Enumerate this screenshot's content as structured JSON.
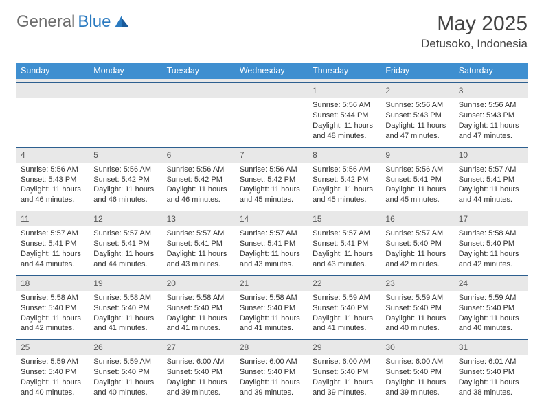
{
  "brand": {
    "part1": "General",
    "part2": "Blue"
  },
  "title": "May 2025",
  "location": "Detusoko, Indonesia",
  "colors": {
    "header_bg": "#3f8fd0",
    "week_border": "#2d5f8f",
    "day_num_bg": "#e8e8e8",
    "brand_gray": "#6c6c6c",
    "brand_blue": "#2a7ac0"
  },
  "weekdays": [
    "Sunday",
    "Monday",
    "Tuesday",
    "Wednesday",
    "Thursday",
    "Friday",
    "Saturday"
  ],
  "weeks": [
    [
      null,
      null,
      null,
      null,
      {
        "n": "1",
        "sunrise": "5:56 AM",
        "sunset": "5:44 PM",
        "daylight": "11 hours and 48 minutes."
      },
      {
        "n": "2",
        "sunrise": "5:56 AM",
        "sunset": "5:43 PM",
        "daylight": "11 hours and 47 minutes."
      },
      {
        "n": "3",
        "sunrise": "5:56 AM",
        "sunset": "5:43 PM",
        "daylight": "11 hours and 47 minutes."
      }
    ],
    [
      {
        "n": "4",
        "sunrise": "5:56 AM",
        "sunset": "5:43 PM",
        "daylight": "11 hours and 46 minutes."
      },
      {
        "n": "5",
        "sunrise": "5:56 AM",
        "sunset": "5:42 PM",
        "daylight": "11 hours and 46 minutes."
      },
      {
        "n": "6",
        "sunrise": "5:56 AM",
        "sunset": "5:42 PM",
        "daylight": "11 hours and 46 minutes."
      },
      {
        "n": "7",
        "sunrise": "5:56 AM",
        "sunset": "5:42 PM",
        "daylight": "11 hours and 45 minutes."
      },
      {
        "n": "8",
        "sunrise": "5:56 AM",
        "sunset": "5:42 PM",
        "daylight": "11 hours and 45 minutes."
      },
      {
        "n": "9",
        "sunrise": "5:56 AM",
        "sunset": "5:41 PM",
        "daylight": "11 hours and 45 minutes."
      },
      {
        "n": "10",
        "sunrise": "5:57 AM",
        "sunset": "5:41 PM",
        "daylight": "11 hours and 44 minutes."
      }
    ],
    [
      {
        "n": "11",
        "sunrise": "5:57 AM",
        "sunset": "5:41 PM",
        "daylight": "11 hours and 44 minutes."
      },
      {
        "n": "12",
        "sunrise": "5:57 AM",
        "sunset": "5:41 PM",
        "daylight": "11 hours and 44 minutes."
      },
      {
        "n": "13",
        "sunrise": "5:57 AM",
        "sunset": "5:41 PM",
        "daylight": "11 hours and 43 minutes."
      },
      {
        "n": "14",
        "sunrise": "5:57 AM",
        "sunset": "5:41 PM",
        "daylight": "11 hours and 43 minutes."
      },
      {
        "n": "15",
        "sunrise": "5:57 AM",
        "sunset": "5:41 PM",
        "daylight": "11 hours and 43 minutes."
      },
      {
        "n": "16",
        "sunrise": "5:57 AM",
        "sunset": "5:40 PM",
        "daylight": "11 hours and 42 minutes."
      },
      {
        "n": "17",
        "sunrise": "5:58 AM",
        "sunset": "5:40 PM",
        "daylight": "11 hours and 42 minutes."
      }
    ],
    [
      {
        "n": "18",
        "sunrise": "5:58 AM",
        "sunset": "5:40 PM",
        "daylight": "11 hours and 42 minutes."
      },
      {
        "n": "19",
        "sunrise": "5:58 AM",
        "sunset": "5:40 PM",
        "daylight": "11 hours and 41 minutes."
      },
      {
        "n": "20",
        "sunrise": "5:58 AM",
        "sunset": "5:40 PM",
        "daylight": "11 hours and 41 minutes."
      },
      {
        "n": "21",
        "sunrise": "5:58 AM",
        "sunset": "5:40 PM",
        "daylight": "11 hours and 41 minutes."
      },
      {
        "n": "22",
        "sunrise": "5:59 AM",
        "sunset": "5:40 PM",
        "daylight": "11 hours and 41 minutes."
      },
      {
        "n": "23",
        "sunrise": "5:59 AM",
        "sunset": "5:40 PM",
        "daylight": "11 hours and 40 minutes."
      },
      {
        "n": "24",
        "sunrise": "5:59 AM",
        "sunset": "5:40 PM",
        "daylight": "11 hours and 40 minutes."
      }
    ],
    [
      {
        "n": "25",
        "sunrise": "5:59 AM",
        "sunset": "5:40 PM",
        "daylight": "11 hours and 40 minutes."
      },
      {
        "n": "26",
        "sunrise": "5:59 AM",
        "sunset": "5:40 PM",
        "daylight": "11 hours and 40 minutes."
      },
      {
        "n": "27",
        "sunrise": "6:00 AM",
        "sunset": "5:40 PM",
        "daylight": "11 hours and 39 minutes."
      },
      {
        "n": "28",
        "sunrise": "6:00 AM",
        "sunset": "5:40 PM",
        "daylight": "11 hours and 39 minutes."
      },
      {
        "n": "29",
        "sunrise": "6:00 AM",
        "sunset": "5:40 PM",
        "daylight": "11 hours and 39 minutes."
      },
      {
        "n": "30",
        "sunrise": "6:00 AM",
        "sunset": "5:40 PM",
        "daylight": "11 hours and 39 minutes."
      },
      {
        "n": "31",
        "sunrise": "6:01 AM",
        "sunset": "5:40 PM",
        "daylight": "11 hours and 38 minutes."
      }
    ]
  ],
  "labels": {
    "sunrise": "Sunrise: ",
    "sunset": "Sunset: ",
    "daylight": "Daylight: "
  }
}
